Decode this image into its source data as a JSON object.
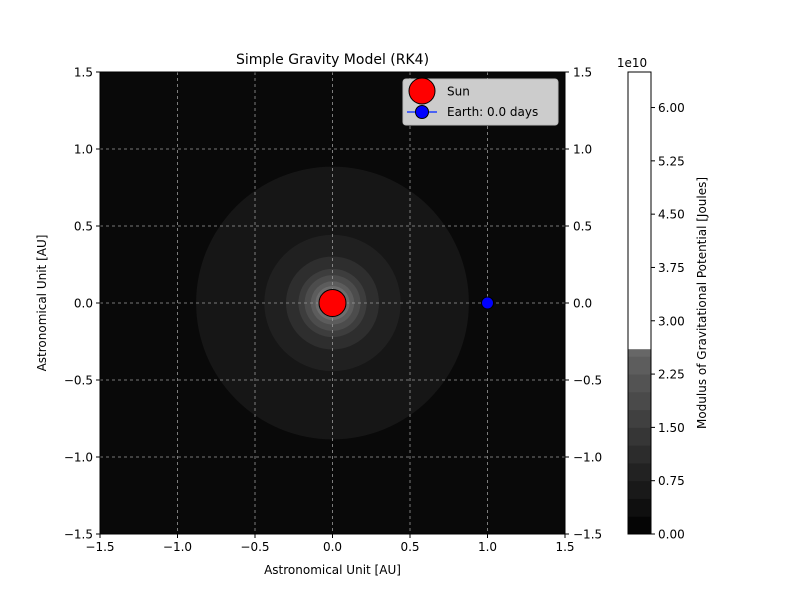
{
  "chart_data": {
    "type": "heatmap",
    "title": "Simple Gravity Model (RK4)",
    "xlabel": "Astronomical Unit [AU]",
    "ylabel": "Astronomical Unit [AU]",
    "xlim": [
      -1.5,
      1.5
    ],
    "ylim": [
      -1.5,
      1.5
    ],
    "x_ticks": [
      -1.5,
      -1.0,
      -0.5,
      0.0,
      0.5,
      1.0,
      1.5
    ],
    "y_ticks": [
      -1.5,
      -1.0,
      -0.5,
      0.0,
      0.5,
      1.0,
      1.5
    ],
    "x_tick_labels": [
      "−1.5",
      "−1.0",
      "−0.5",
      "0.0",
      "0.5",
      "1.0",
      "1.5"
    ],
    "y_tick_labels": [
      "−1.5",
      "−1.0",
      "−0.5",
      "0.0",
      "0.5",
      "1.0",
      "1.5"
    ],
    "grid": true,
    "grid_color": "#9a9a9a",
    "right_axis_ticks_mirrored": true,
    "colorbar": {
      "label": "Modulus of Gravitational Potential [Joules]",
      "offset_label": "1e10",
      "range": [
        0.0,
        6.5
      ],
      "ticks": [
        0.0,
        0.75,
        1.5,
        2.25,
        3.0,
        3.75,
        4.5,
        5.25,
        6.0
      ],
      "tick_labels": [
        "0.00",
        "0.75",
        "1.50",
        "2.25",
        "3.00",
        "3.75",
        "4.50",
        "5.25",
        "6.00"
      ],
      "level_count": 26,
      "top_colored_level": 2.6
    },
    "contour_radii_au": [
      0.88,
      0.44,
      0.3,
      0.22,
      0.18,
      0.14,
      0.11,
      0.09
    ],
    "sun": {
      "label": "Sun",
      "x": 0.0,
      "y": 0.0,
      "color": "#ff0000"
    },
    "earth": {
      "label": "Earth: 0.0 days",
      "x": 1.0,
      "y": 0.0,
      "color": "#0000ff",
      "line_color": "#1f3fff"
    },
    "legend_position": "upper right"
  }
}
